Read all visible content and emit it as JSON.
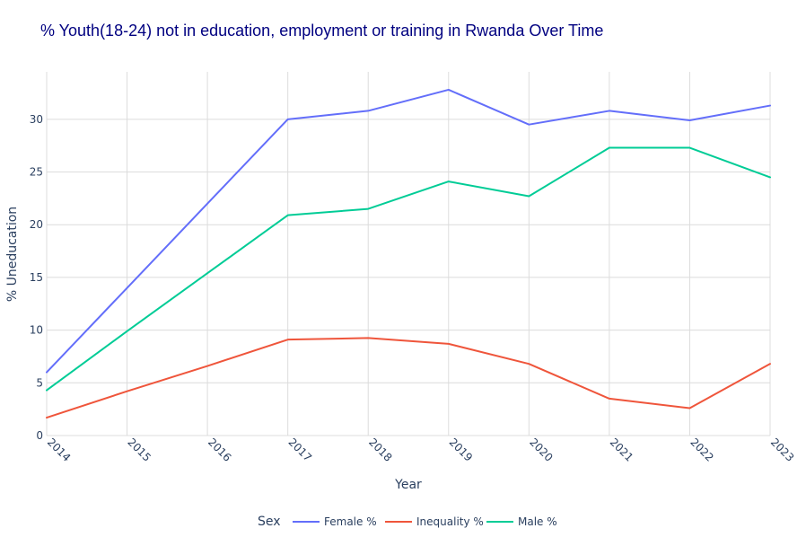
{
  "chart_data": {
    "type": "line",
    "title": "% Youth(18-24) not in education, employment or training in Rwanda Over Time",
    "xlabel": "Year",
    "ylabel": "% Uneducation",
    "x": [
      2014,
      2015,
      2016,
      2017,
      2018,
      2019,
      2020,
      2021,
      2022,
      2023
    ],
    "x_tick_labels": [
      "2014",
      "2015",
      "2016",
      "2017",
      "2018",
      "2019",
      "2020",
      "2021",
      "2022",
      "2023"
    ],
    "y_ticks": [
      0,
      5,
      10,
      15,
      20,
      25,
      30
    ],
    "y_tick_labels": [
      "0",
      "5",
      "10",
      "15",
      "20",
      "25",
      "30"
    ],
    "xlim": [
      2014,
      2023
    ],
    "ylim": [
      0,
      34.5
    ],
    "grid": true,
    "legend": {
      "title": "Sex",
      "placement": "bottom",
      "orientation": "horizontal"
    },
    "series": [
      {
        "name": "Female %",
        "color": "#636efa",
        "values": [
          6.0,
          14.0,
          22.0,
          30.0,
          30.8,
          32.8,
          29.5,
          30.8,
          29.9,
          31.3
        ]
      },
      {
        "name": "Inequality %",
        "color": "#ef553b",
        "values": [
          1.7,
          4.2,
          6.6,
          9.1,
          9.25,
          8.7,
          6.8,
          3.5,
          2.6,
          6.8
        ]
      },
      {
        "name": "Male %",
        "color": "#00cc96",
        "values": [
          4.3,
          9.9,
          15.4,
          20.9,
          21.5,
          24.1,
          22.7,
          27.3,
          27.3,
          24.5
        ]
      }
    ]
  }
}
